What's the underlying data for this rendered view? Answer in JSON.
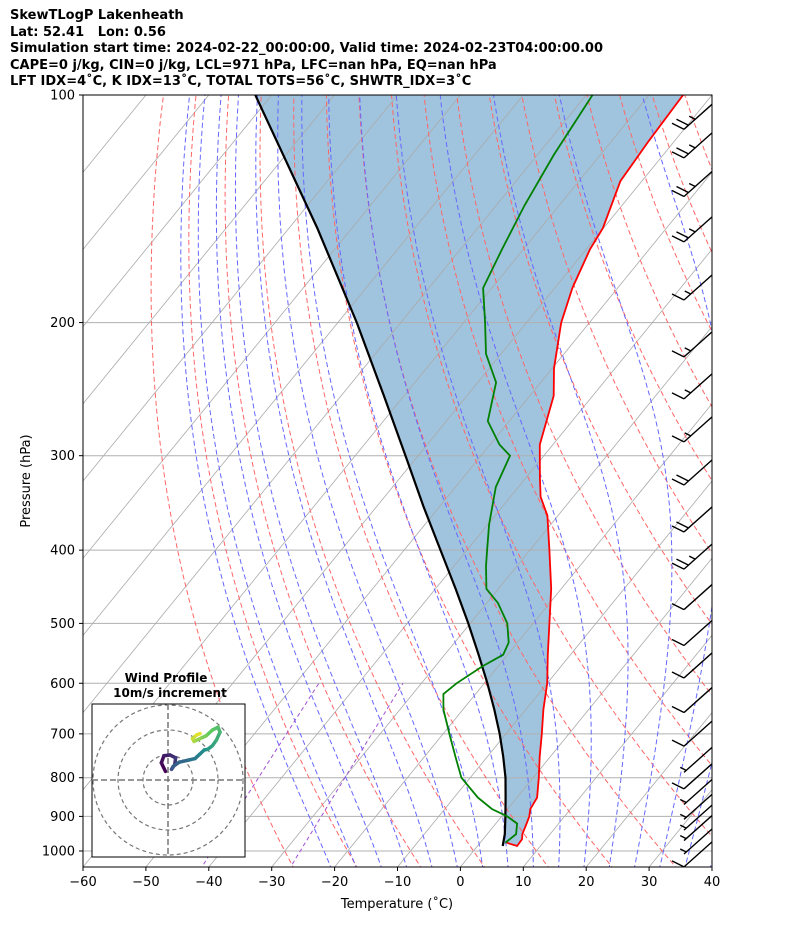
{
  "header": {
    "line1": "SkewTLogP Lakenheath",
    "line2": "Lat: 52.41   Lon: 0.56",
    "line3": "Simulation start time: 2024-02-22_00:00:00, Valid time: 2024-02-23T04:00:00.00",
    "line4": "CAPE=0 j/kg, CIN=0 j/kg, LCL=971 hPa, LFC=nan hPa, EQ=nan hPa",
    "line5": "LFT IDX=4˚C, K IDX=13˚C, TOTAL TOTS=56˚C, SHWTR_IDX=3˚C"
  },
  "chart_data": {
    "type": "line",
    "subtype": "skew-t log-p",
    "xlabel": "Temperature (˚C)",
    "ylabel": "Pressure (hPa)",
    "xlim": [
      -60,
      40
    ],
    "ylim": [
      1050,
      100
    ],
    "x_ticks": [
      "−60",
      "−50",
      "−40",
      "−30",
      "−20",
      "−10",
      "0",
      "10",
      "20",
      "30",
      "40"
    ],
    "y_ticks": [
      "100",
      "200",
      "300",
      "400",
      "500",
      "600",
      "700",
      "800",
      "900",
      "1000"
    ],
    "y_scale": "log",
    "grid": true,
    "colors": {
      "temperature": "#ff0000",
      "dewpoint": "#008000",
      "parcel": "#000000",
      "shade": "#a0c4de",
      "dry_adiabat": "#ff6666",
      "moist_adiabat": "#6666ff",
      "mixing_ratio": "#a050d0",
      "isotherm": "#aaaaaa"
    },
    "series": [
      {
        "key": "temperature",
        "pressure": [
          975,
          985,
          965,
          950,
          920,
          900,
          880,
          850,
          800,
          750,
          700,
          650,
          600,
          550,
          500,
          450,
          400,
          360,
          340,
          320,
          290,
          250,
          230,
          200,
          180,
          160,
          150,
          130,
          115,
          100
        ],
        "temperature": [
          4.2,
          6.3,
          6.2,
          5.6,
          4.9,
          4.4,
          3.6,
          3.2,
          0.9,
          -1.7,
          -4.3,
          -7.2,
          -10.0,
          -13.6,
          -17.4,
          -21.6,
          -26.9,
          -31.7,
          -35.2,
          -37.9,
          -42.1,
          -46.2,
          -49.7,
          -54.5,
          -57.2,
          -59.4,
          -60.1,
          -63.4,
          -64.1,
          -64.6
        ]
      },
      {
        "key": "dewpoint",
        "pressure": [
          975,
          950,
          920,
          900,
          880,
          850,
          800,
          750,
          700,
          650,
          620,
          600,
          570,
          550,
          530,
          500,
          470,
          450,
          420,
          400,
          370,
          330,
          300,
          290,
          270,
          240,
          220,
          200,
          180,
          160,
          140,
          120,
          100
        ],
        "temperature": [
          4.0,
          4.6,
          3.4,
          0.9,
          -2.5,
          -6.2,
          -11.4,
          -15.1,
          -19.0,
          -23.1,
          -25.1,
          -24.4,
          -22.5,
          -20.7,
          -21.4,
          -24.1,
          -28.2,
          -31.9,
          -34.9,
          -36.8,
          -39.8,
          -43.6,
          -45.4,
          -48.5,
          -53.4,
          -57.1,
          -62.4,
          -66.6,
          -71.4,
          -73.4,
          -75.5,
          -77.4,
          -79.0
        ]
      },
      {
        "key": "parcel",
        "pressure": [
          985,
          950,
          900,
          850,
          800,
          750,
          700,
          650,
          600,
          550,
          500,
          450,
          400,
          350,
          300,
          250,
          200,
          150,
          100
        ],
        "temperature": [
          4.0,
          2.8,
          0.6,
          -1.8,
          -4.4,
          -7.5,
          -11.0,
          -15.0,
          -19.5,
          -24.6,
          -30.3,
          -36.8,
          -44.2,
          -52.6,
          -62.0,
          -73.2,
          -87.0,
          -105.5,
          -132.6
        ]
      }
    ],
    "winds": {
      "pressure": [
        1040,
        1000,
        960,
        930,
        900,
        860,
        820,
        780,
        720,
        650,
        585,
        530,
        475,
        420,
        375,
        325,
        285,
        250,
        220,
        185,
        155,
        135,
        120,
        110
      ],
      "flag_barbs": [
        0,
        0,
        0,
        0,
        0,
        0,
        0,
        0,
        0,
        0,
        0,
        0,
        0,
        0,
        0,
        0,
        0,
        0,
        0,
        0,
        0,
        0,
        0,
        0
      ],
      "full_barbs": [
        1,
        0,
        0,
        0,
        0,
        0,
        1,
        0,
        1,
        1,
        1,
        1,
        1,
        2,
        2,
        2,
        1,
        1,
        1,
        1,
        2,
        2,
        2,
        2
      ],
      "half_barbs": [
        0,
        1,
        1,
        1,
        1,
        1,
        0,
        1,
        0,
        0,
        0,
        0,
        0,
        1,
        0,
        0,
        1,
        1,
        1,
        1,
        1,
        1,
        1,
        1
      ]
    },
    "inset": {
      "title": "Wind Profile",
      "subtitle": "10m/s increment",
      "type": "hodograph",
      "u": [
        -0.5,
        -1.3,
        -0.8,
        0.4,
        1.5,
        1.3,
        0.7,
        1.0,
        2.2,
        4.1,
        5.3,
        6.2,
        7.1,
        7.8,
        8.7,
        9.5,
        10.2,
        9.8,
        8.7,
        7.5,
        6.3,
        5.1,
        4.8,
        5.6,
        6.3
      ],
      "v": [
        1.2,
        2.4,
        3.4,
        3.5,
        3.1,
        2.1,
        1.5,
        1.9,
        2.5,
        2.8,
        3.0,
        3.6,
        4.2,
        4.3,
        4.8,
        5.6,
        6.7,
        7.4,
        7.0,
        6.2,
        5.8,
        5.4,
        5.8,
        6.3,
        6.5
      ]
    }
  }
}
